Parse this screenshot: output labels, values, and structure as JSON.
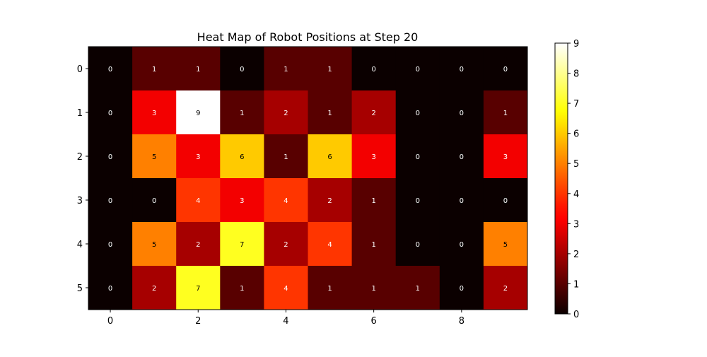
{
  "chart_data": {
    "type": "heatmap",
    "title": "Heat Map of Robot Positions at Step 20",
    "xlabel": "",
    "ylabel": "",
    "rows": [
      0,
      1,
      2,
      3,
      4,
      5
    ],
    "cols": [
      0,
      1,
      2,
      3,
      4,
      5,
      6,
      7,
      8,
      9
    ],
    "x_ticks": [
      0,
      2,
      4,
      6,
      8
    ],
    "y_ticks": [
      0,
      1,
      2,
      3,
      4,
      5
    ],
    "values": [
      [
        0,
        1,
        1,
        0,
        1,
        1,
        0,
        0,
        0,
        0
      ],
      [
        0,
        3,
        9,
        1,
        2,
        1,
        2,
        0,
        0,
        1
      ],
      [
        0,
        5,
        3,
        6,
        1,
        6,
        3,
        0,
        0,
        3
      ],
      [
        0,
        0,
        4,
        3,
        4,
        2,
        1,
        0,
        0,
        0
      ],
      [
        0,
        5,
        2,
        7,
        2,
        4,
        1,
        0,
        0,
        5
      ],
      [
        0,
        2,
        7,
        1,
        4,
        1,
        1,
        1,
        0,
        2
      ]
    ],
    "colormap": "hot",
    "vmin": 0,
    "vmax": 9,
    "colorbar_ticks": [
      0,
      1,
      2,
      3,
      4,
      5,
      6,
      7,
      8,
      9
    ],
    "annotations": true,
    "grid": false
  }
}
